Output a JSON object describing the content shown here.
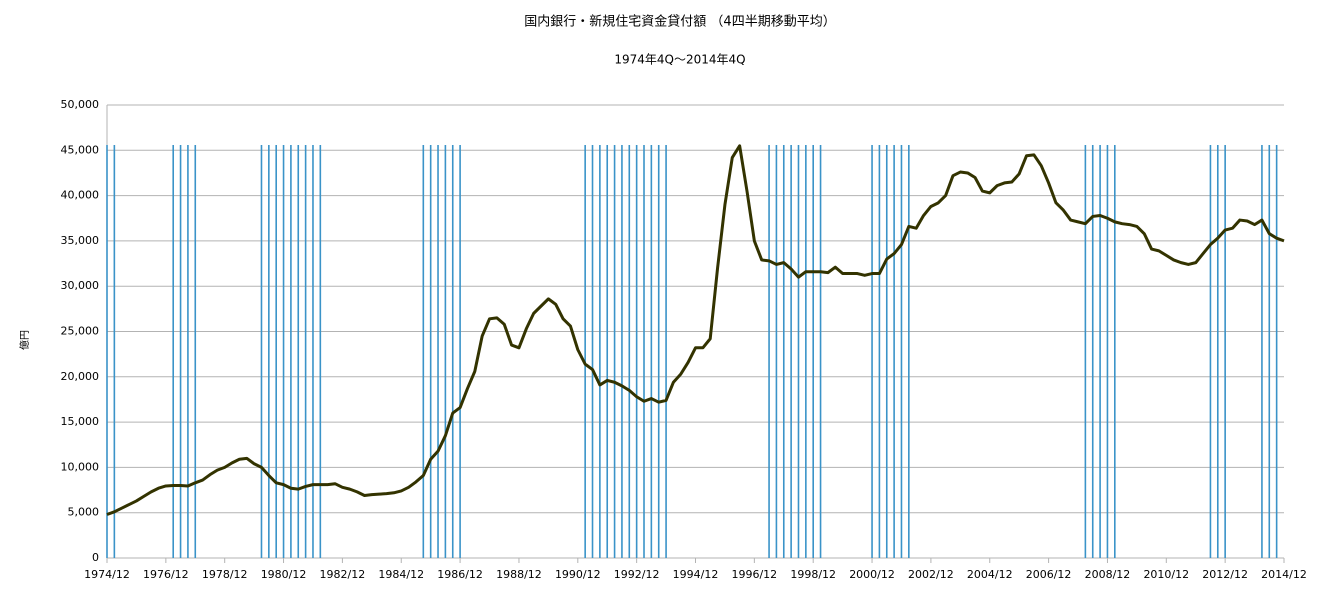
{
  "chart_data": {
    "type": "line",
    "title": "国内銀行・新規住宅資金貸付額 （4四半期移動平均）",
    "subtitle": "1974年4Q～2014年4Q",
    "y_label": "億円",
    "categories": [
      "1974/12",
      null,
      null,
      null,
      null,
      null,
      null,
      null,
      "1976/12",
      null,
      null,
      null,
      null,
      null,
      null,
      null,
      "1978/12",
      null,
      null,
      null,
      null,
      null,
      null,
      null,
      "1980/12",
      null,
      null,
      null,
      null,
      null,
      null,
      null,
      "1982/12",
      null,
      null,
      null,
      null,
      null,
      null,
      null,
      "1984/12",
      null,
      null,
      null,
      null,
      null,
      null,
      null,
      "1986/12",
      null,
      null,
      null,
      null,
      null,
      null,
      null,
      "1988/12",
      null,
      null,
      null,
      null,
      null,
      null,
      null,
      "1990/12",
      null,
      null,
      null,
      null,
      null,
      null,
      null,
      "1992/12",
      null,
      null,
      null,
      null,
      null,
      null,
      null,
      "1994/12",
      null,
      null,
      null,
      null,
      null,
      null,
      null,
      "1996/12",
      null,
      null,
      null,
      null,
      null,
      null,
      null,
      "1998/12",
      null,
      null,
      null,
      null,
      null,
      null,
      null,
      "2000/12",
      null,
      null,
      null,
      null,
      null,
      null,
      null,
      "2002/12",
      null,
      null,
      null,
      null,
      null,
      null,
      null,
      "2004/12",
      null,
      null,
      null,
      null,
      null,
      null,
      null,
      "2006/12",
      null,
      null,
      null,
      null,
      null,
      null,
      null,
      "2008/12",
      null,
      null,
      null,
      null,
      null,
      null,
      null,
      "2010/12",
      null,
      null,
      null,
      null,
      null,
      null,
      null,
      "2012/12",
      null,
      null,
      null,
      null,
      null,
      null,
      null,
      "2014/12"
    ],
    "series": [
      {
        "name": "新規住宅資金貸付額",
        "color": "#333300",
        "values": [
          4800,
          5100,
          5500,
          5900,
          6300,
          6800,
          7300,
          7700,
          7950,
          8000,
          8000,
          7950,
          8300,
          8600,
          9200,
          9700,
          10000,
          10500,
          10900,
          11000,
          10400,
          10000,
          9100,
          8300,
          8100,
          7700,
          7600,
          7900,
          8100,
          8100,
          8100,
          8200,
          7800,
          7600,
          7300,
          6900,
          7000,
          7050,
          7100,
          7200,
          7400,
          7800,
          8400,
          9100,
          10900,
          11800,
          13500,
          16000,
          16600,
          18700,
          20600,
          24500,
          26400,
          26500,
          25800,
          23500,
          23200,
          25300,
          27000,
          27800,
          28600,
          28000,
          26400,
          25600,
          23000,
          21400,
          20800,
          19100,
          19600,
          19400,
          19000,
          18500,
          17800,
          17300,
          17600,
          17200,
          17400,
          19400,
          20300,
          21600,
          23200,
          23200,
          24200,
          32000,
          39000,
          44200,
          45500,
          40500,
          35000,
          32900,
          32800,
          32400,
          32600,
          31900,
          31000,
          31600,
          31600,
          31600,
          31500,
          32100,
          31400,
          31400,
          31400,
          31200,
          31400,
          31400,
          33000,
          33600,
          34600,
          36600,
          36400,
          37800,
          38800,
          39200,
          40000,
          42200,
          42600,
          42500,
          42000,
          40500,
          40300,
          41100,
          41400,
          41500,
          42400,
          44400,
          44500,
          43300,
          41400,
          39200,
          38400,
          37300,
          37100,
          36900,
          37700,
          37800,
          37500,
          37100,
          36900,
          36800,
          36600,
          35800,
          34100,
          33900,
          33400,
          32900,
          32600,
          32400,
          32600,
          33600,
          34600,
          35300,
          36200,
          36400,
          37300,
          37200,
          36800,
          37300,
          35800,
          35300,
          35000
        ]
      }
    ],
    "vlines": [
      0,
      1,
      9,
      10,
      11,
      12,
      21,
      22,
      23,
      24,
      25,
      26,
      27,
      28,
      29,
      43,
      44,
      45,
      46,
      47,
      48,
      65,
      66,
      67,
      68,
      69,
      70,
      71,
      72,
      73,
      74,
      75,
      76,
      90,
      91,
      92,
      93,
      94,
      95,
      96,
      97,
      104,
      105,
      106,
      107,
      108,
      109,
      133,
      134,
      135,
      136,
      137,
      150,
      151,
      152,
      157,
      158,
      159
    ],
    "vline_color": "#3a93c8",
    "ylim": [
      0,
      50000
    ],
    "yticks": [
      0,
      {
        "value": 5000,
        "label": "5,000"
      },
      {
        "value": 10000,
        "label": "10,000"
      },
      {
        "value": 15000,
        "label": "15,000"
      },
      {
        "value": 20000,
        "label": "20,000"
      },
      {
        "value": 25000,
        "label": "25,000"
      },
      {
        "value": 30000,
        "label": "30,000"
      },
      {
        "value": 35000,
        "label": "35,000"
      },
      {
        "value": 40000,
        "label": "40,000"
      },
      {
        "value": 45000,
        "label": "45,000"
      },
      {
        "value": 50000,
        "label": "50,000"
      }
    ],
    "grid": true
  }
}
